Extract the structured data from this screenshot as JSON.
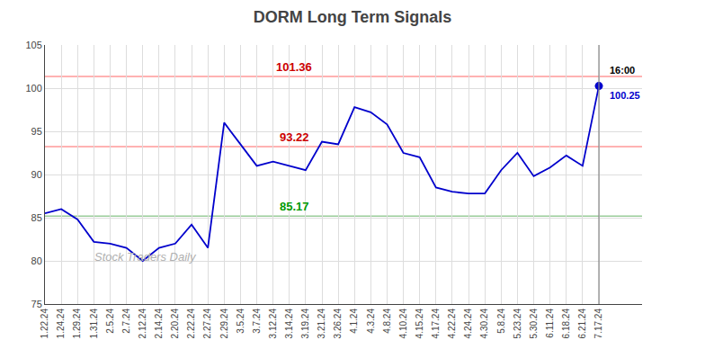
{
  "chart_data": {
    "type": "line",
    "title": "DORM Long Term Signals",
    "categories": [
      "1.22.24",
      "1.24.24",
      "1.29.24",
      "1.31.24",
      "2.5.24",
      "2.7.24",
      "2.12.24",
      "2.14.24",
      "2.20.24",
      "2.22.24",
      "2.27.24",
      "2.29.24",
      "3.5.24",
      "3.7.24",
      "3.12.24",
      "3.14.24",
      "3.19.24",
      "3.21.24",
      "3.26.24",
      "4.1.24",
      "4.3.24",
      "4.8.24",
      "4.10.24",
      "4.15.24",
      "4.17.24",
      "4.22.24",
      "4.24.24",
      "4.30.24",
      "5.8.24",
      "5.23.24",
      "5.30.24",
      "6.11.24",
      "6.18.24",
      "6.21.24",
      "7.17.24"
    ],
    "values": [
      85.5,
      86.0,
      84.8,
      82.2,
      82.0,
      81.5,
      80.0,
      81.5,
      82.0,
      84.2,
      81.5,
      96.0,
      93.5,
      91.0,
      91.5,
      91.0,
      90.5,
      93.8,
      93.5,
      97.8,
      97.2,
      95.8,
      92.5,
      92.0,
      88.5,
      88.0,
      87.8,
      87.8,
      90.5,
      92.5,
      89.8,
      90.8,
      92.2,
      91.0,
      100.25
    ],
    "color": "#0000cc",
    "ylim": [
      75,
      105
    ],
    "yticks": [
      75,
      80,
      85,
      90,
      95,
      100,
      105
    ],
    "grid": true,
    "hlines": [
      {
        "value": 101.36,
        "label": "101.36",
        "color": "#ff9999",
        "label_color": "#cc0000"
      },
      {
        "value": 93.22,
        "label": "93.22",
        "color": "#ff9999",
        "label_color": "#cc0000"
      },
      {
        "value": 85.17,
        "label": "85.17",
        "color": "#99cc99",
        "label_color": "#009900"
      }
    ],
    "vline": {
      "category": "7.17.24",
      "color": "#888888"
    },
    "last_point": {
      "category": "7.17.24",
      "value": 100.25,
      "label": "100.25",
      "time_label": "16:00",
      "color": "#0000cc"
    },
    "watermark": "Stock Traders Daily"
  }
}
